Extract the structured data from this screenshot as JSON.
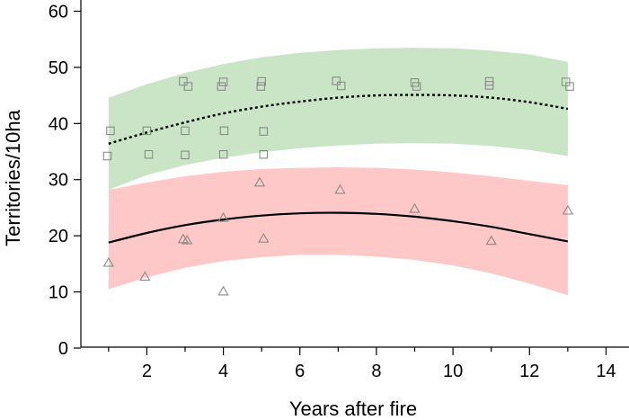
{
  "chart_data": {
    "type": "scatter",
    "xlabel": "Years after fire",
    "ylabel": "Territories/10ha",
    "xlim": [
      0.3,
      14.6
    ],
    "ylim": [
      0,
      62
    ],
    "xticks": [
      2,
      4,
      6,
      8,
      10,
      12,
      14
    ],
    "yticks": [
      0,
      10,
      20,
      30,
      40,
      50,
      60
    ],
    "grid": false,
    "series": [
      {
        "marker": "square",
        "color": "#8a8a8a",
        "points": [
          {
            "x": 0.97,
            "y": 34.2
          },
          {
            "x": 1.05,
            "y": 38.7
          },
          {
            "x": 2.0,
            "y": 38.7
          },
          {
            "x": 2.05,
            "y": 34.5
          },
          {
            "x": 2.95,
            "y": 47.5
          },
          {
            "x": 3.0,
            "y": 38.7
          },
          {
            "x": 3.0,
            "y": 34.4
          },
          {
            "x": 3.08,
            "y": 46.6
          },
          {
            "x": 3.95,
            "y": 46.6
          },
          {
            "x": 4.0,
            "y": 47.4
          },
          {
            "x": 4.02,
            "y": 38.7
          },
          {
            "x": 4.0,
            "y": 34.5
          },
          {
            "x": 5.0,
            "y": 47.5
          },
          {
            "x": 4.98,
            "y": 46.6
          },
          {
            "x": 5.05,
            "y": 38.6
          },
          {
            "x": 5.05,
            "y": 34.5
          },
          {
            "x": 6.95,
            "y": 47.6
          },
          {
            "x": 7.08,
            "y": 46.7
          },
          {
            "x": 9.0,
            "y": 47.3
          },
          {
            "x": 9.05,
            "y": 46.6
          },
          {
            "x": 10.95,
            "y": 47.5
          },
          {
            "x": 10.95,
            "y": 46.8
          },
          {
            "x": 12.95,
            "y": 47.4
          },
          {
            "x": 13.05,
            "y": 46.6
          }
        ],
        "fit": {
          "style": "dotted",
          "color": "#000000",
          "x": [
            1,
            2,
            3,
            4,
            5,
            6,
            7,
            8,
            9,
            10,
            11,
            12,
            13
          ],
          "y": [
            36.4,
            38.4,
            40.2,
            41.8,
            43.0,
            43.9,
            44.6,
            45.0,
            45.1,
            45.0,
            44.6,
            43.8,
            42.6
          ]
        },
        "band": {
          "color": "#c9e5c5",
          "x": [
            1,
            2,
            3,
            4,
            5,
            6,
            7,
            8,
            9,
            10,
            11,
            12,
            13
          ],
          "lower": [
            28.2,
            30.8,
            32.6,
            33.9,
            34.9,
            35.6,
            36.1,
            36.4,
            36.5,
            36.4,
            36.0,
            35.3,
            34.2
          ],
          "upper": [
            44.6,
            47.0,
            49.0,
            50.6,
            51.8,
            52.6,
            53.1,
            53.4,
            53.5,
            53.4,
            53.0,
            52.3,
            51.0
          ]
        }
      },
      {
        "marker": "triangle",
        "color": "#8a8a8a",
        "points": [
          {
            "x": 1.0,
            "y": 15.2
          },
          {
            "x": 1.95,
            "y": 12.7
          },
          {
            "x": 2.95,
            "y": 19.4
          },
          {
            "x": 3.05,
            "y": 19.2
          },
          {
            "x": 4.0,
            "y": 23.2
          },
          {
            "x": 4.0,
            "y": 10.1
          },
          {
            "x": 4.95,
            "y": 29.5
          },
          {
            "x": 5.05,
            "y": 19.5
          },
          {
            "x": 7.05,
            "y": 28.2
          },
          {
            "x": 9.0,
            "y": 24.8
          },
          {
            "x": 11.0,
            "y": 19.1
          },
          {
            "x": 13.0,
            "y": 24.5
          }
        ],
        "fit": {
          "style": "solid",
          "color": "#000000",
          "x": [
            1,
            2,
            3,
            4,
            5,
            6,
            7,
            8,
            9,
            10,
            11,
            12,
            13
          ],
          "y": [
            18.8,
            20.5,
            21.9,
            22.9,
            23.6,
            24.0,
            24.1,
            23.9,
            23.4,
            22.6,
            21.6,
            20.3,
            19.0
          ]
        },
        "band": {
          "color": "#fec8c8",
          "x": [
            1,
            2,
            3,
            4,
            5,
            6,
            7,
            8,
            9,
            10,
            11,
            12,
            13
          ],
          "lower": [
            10.5,
            12.6,
            14.3,
            15.5,
            16.2,
            16.6,
            16.6,
            16.3,
            15.7,
            14.7,
            13.3,
            11.5,
            9.4
          ],
          "upper": [
            28.2,
            29.5,
            30.6,
            31.4,
            31.9,
            32.1,
            32.2,
            32.1,
            31.8,
            31.3,
            30.6,
            29.8,
            29.0
          ]
        }
      }
    ]
  }
}
